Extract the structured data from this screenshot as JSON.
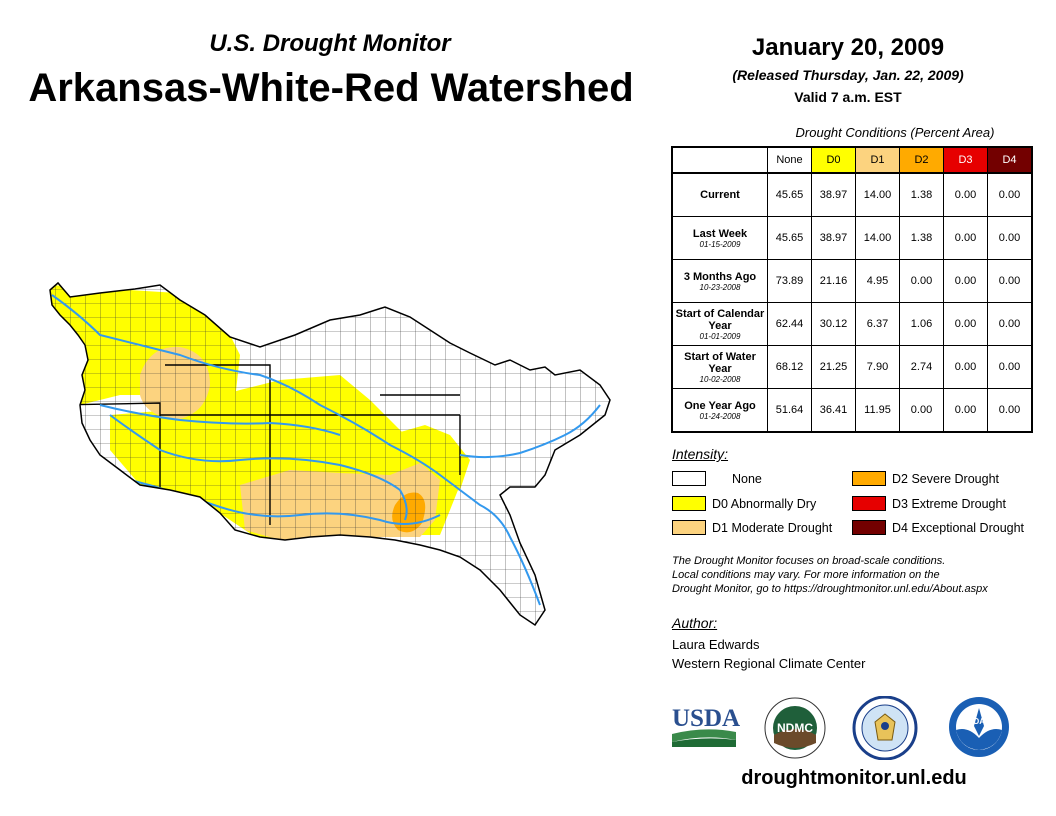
{
  "header": {
    "subtitle": "U.S. Drought Monitor",
    "title": "Arkansas-White-Red Watershed",
    "date": "January 20, 2009",
    "released": "(Released Thursday, Jan. 22, 2009)",
    "valid": "Valid 7 a.m. EST"
  },
  "table": {
    "caption": "Drought Conditions (Percent Area)",
    "columns": [
      "None",
      "D0",
      "D1",
      "D2",
      "D3",
      "D4"
    ],
    "column_colors": [
      "#ffffff",
      "#ffff00",
      "#fcd37f",
      "#ffaa00",
      "#e60000",
      "#730000"
    ],
    "rows": [
      {
        "label": "Current",
        "date": "",
        "values": [
          "45.65",
          "38.97",
          "14.00",
          "1.38",
          "0.00",
          "0.00"
        ]
      },
      {
        "label": "Last Week",
        "date": "01-15-2009",
        "values": [
          "45.65",
          "38.97",
          "14.00",
          "1.38",
          "0.00",
          "0.00"
        ]
      },
      {
        "label": "3 Months Ago",
        "date": "10-23-2008",
        "values": [
          "73.89",
          "21.16",
          "4.95",
          "0.00",
          "0.00",
          "0.00"
        ]
      },
      {
        "label": "Start of Calendar Year",
        "date": "01-01-2009",
        "values": [
          "62.44",
          "30.12",
          "6.37",
          "1.06",
          "0.00",
          "0.00"
        ]
      },
      {
        "label": "Start of Water Year",
        "date": "10-02-2008",
        "values": [
          "68.12",
          "21.25",
          "7.90",
          "2.74",
          "0.00",
          "0.00"
        ]
      },
      {
        "label": "One Year Ago",
        "date": "01-24-2008",
        "values": [
          "51.64",
          "36.41",
          "11.95",
          "0.00",
          "0.00",
          "0.00"
        ]
      }
    ]
  },
  "legend": {
    "title": "Intensity:",
    "items": [
      {
        "label": "None",
        "color": "#ffffff"
      },
      {
        "label": "D0 Abnormally Dry",
        "color": "#ffff00"
      },
      {
        "label": "D1 Moderate Drought",
        "color": "#fcd37f"
      },
      {
        "label": "D2 Severe Drought",
        "color": "#ffaa00"
      },
      {
        "label": "D3 Extreme Drought",
        "color": "#e60000"
      },
      {
        "label": "D4 Exceptional Drought",
        "color": "#730000"
      }
    ]
  },
  "note": {
    "line1": "The Drought Monitor focuses on broad-scale conditions.",
    "line2": "Local conditions may vary. For more information on the",
    "line3": "Drought Monitor, go to https://droughtmonitor.unl.edu/About.aspx"
  },
  "author": {
    "title": "Author:",
    "name": "Laura Edwards",
    "org": "Western Regional Climate Center"
  },
  "logos": {
    "usda": "USDA",
    "ndmc": "NDMC",
    "noaa": "NOAA"
  },
  "website": "droughtmonitor.unl.edu",
  "map": {
    "river_color": "#3399ee"
  }
}
